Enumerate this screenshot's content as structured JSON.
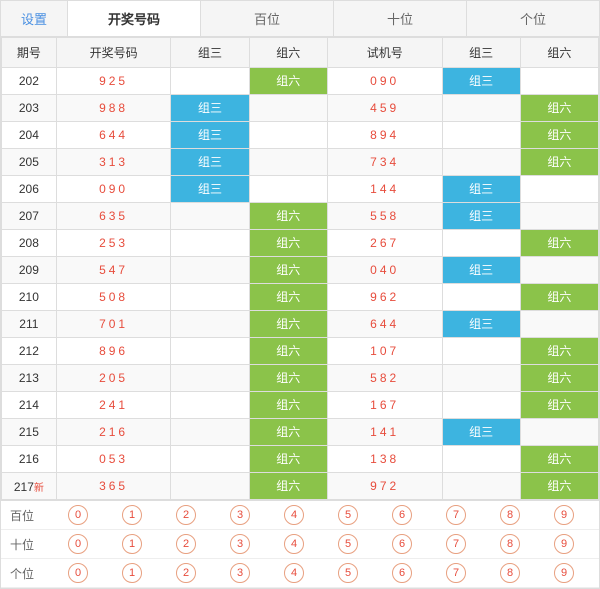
{
  "tabs": {
    "settings": "设置",
    "kaijiang": "开奖号码",
    "baiwei": "百位",
    "shiwei": "十位",
    "gewei": "个位"
  },
  "headers": {
    "qihao": "期号",
    "kaijiang": "开奖号码",
    "zu3": "组三",
    "zu6": "组六",
    "shijih": "试机号"
  },
  "badges": {
    "z3": "组三",
    "z6": "组六"
  },
  "newTag": "新",
  "rows": [
    {
      "qh": "202",
      "kj": "925",
      "z3a": "",
      "z6a": "z6",
      "sjh": "090",
      "z3b": "z3",
      "z6b": ""
    },
    {
      "qh": "203",
      "kj": "988",
      "z3a": "z3",
      "z6a": "",
      "sjh": "459",
      "z3b": "",
      "z6b": "z6"
    },
    {
      "qh": "204",
      "kj": "644",
      "z3a": "z3",
      "z6a": "",
      "sjh": "894",
      "z3b": "",
      "z6b": "z6"
    },
    {
      "qh": "205",
      "kj": "313",
      "z3a": "z3",
      "z6a": "",
      "sjh": "734",
      "z3b": "",
      "z6b": "z6"
    },
    {
      "qh": "206",
      "kj": "090",
      "z3a": "z3",
      "z6a": "",
      "sjh": "144",
      "z3b": "z3",
      "z6b": ""
    },
    {
      "qh": "207",
      "kj": "635",
      "z3a": "",
      "z6a": "z6",
      "sjh": "558",
      "z3b": "z3",
      "z6b": ""
    },
    {
      "qh": "208",
      "kj": "253",
      "z3a": "",
      "z6a": "z6",
      "sjh": "267",
      "z3b": "",
      "z6b": "z6"
    },
    {
      "qh": "209",
      "kj": "547",
      "z3a": "",
      "z6a": "z6",
      "sjh": "040",
      "z3b": "z3",
      "z6b": ""
    },
    {
      "qh": "210",
      "kj": "508",
      "z3a": "",
      "z6a": "z6",
      "sjh": "962",
      "z3b": "",
      "z6b": "z6"
    },
    {
      "qh": "211",
      "kj": "701",
      "z3a": "",
      "z6a": "z6",
      "sjh": "644",
      "z3b": "z3",
      "z6b": ""
    },
    {
      "qh": "212",
      "kj": "896",
      "z3a": "",
      "z6a": "z6",
      "sjh": "107",
      "z3b": "",
      "z6b": "z6"
    },
    {
      "qh": "213",
      "kj": "205",
      "z3a": "",
      "z6a": "z6",
      "sjh": "582",
      "z3b": "",
      "z6b": "z6"
    },
    {
      "qh": "214",
      "kj": "241",
      "z3a": "",
      "z6a": "z6",
      "sjh": "167",
      "z3b": "",
      "z6b": "z6"
    },
    {
      "qh": "215",
      "kj": "216",
      "z3a": "",
      "z6a": "z6",
      "sjh": "141",
      "z3b": "z3",
      "z6b": ""
    },
    {
      "qh": "216",
      "kj": "053",
      "z3a": "",
      "z6a": "z6",
      "sjh": "138",
      "z3b": "",
      "z6b": "z6"
    },
    {
      "qh": "217",
      "kj": "365",
      "z3a": "",
      "z6a": "z6",
      "sjh": "972",
      "z3b": "",
      "z6b": "z6",
      "isNew": true
    }
  ],
  "digitRows": {
    "baiwei": "百位",
    "shiwei": "十位",
    "gewei": "个位"
  },
  "digits": [
    "0",
    "1",
    "2",
    "3",
    "4",
    "5",
    "6",
    "7",
    "8",
    "9"
  ]
}
